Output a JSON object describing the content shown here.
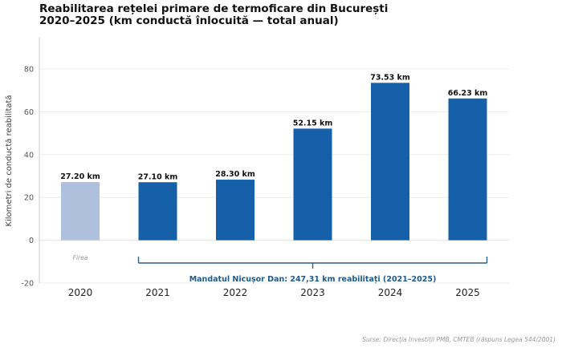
{
  "title_line1": "Reabilitarea rețelei primare de termoficare din București",
  "title_line2": "2020–2025 (km conductă înlocuită — total anual)",
  "source": "Surse: Direcția Investiții PMB, CMTEB (răspuns Legea 544/2001)",
  "chart_data": {
    "type": "bar",
    "categories": [
      "2020",
      "2021",
      "2022",
      "2023",
      "2024",
      "2025"
    ],
    "values": [
      27.2,
      27.1,
      28.3,
      52.15,
      73.53,
      66.23
    ],
    "value_labels": [
      "27.20 km",
      "27.10 km",
      "28.30 km",
      "52.15 km",
      "73.53 km",
      "66.23 km"
    ],
    "ylabel": "Kilometri de conductă reabilitată",
    "xlabel": "",
    "ylim": [
      -20,
      95
    ],
    "yticks": [
      -20,
      0,
      20,
      40,
      60,
      80
    ],
    "grid": true,
    "colors": {
      "highlight": "#1560a8",
      "muted": "#aec0dc",
      "axis": "#cccccc",
      "grid": "#ececec"
    },
    "annotations": {
      "firea_label": "Firea",
      "bracket_label": "Mandatul Nicușor Dan: 247,31 km reabilitați (2021–2025)",
      "bracket_range": [
        "2021",
        "2025"
      ],
      "bracket_color": "#2e5f8a"
    }
  }
}
